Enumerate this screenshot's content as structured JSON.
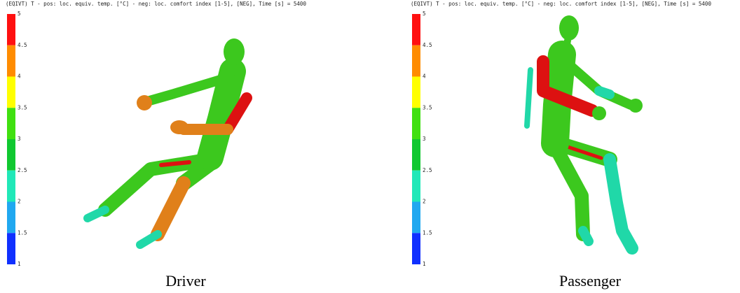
{
  "colorbar_colors": [
    "#ff1010",
    "#ff8c00",
    "#ffff00",
    "#40e010",
    "#10c830",
    "#20e8b8",
    "#20a8f0",
    "#1030ff"
  ],
  "panels": [
    {
      "header": "(EQIVT) T - pos: loc. equiv. temp. [°C] - neg: loc. comfort index [1-5], [NEG], Time [s] = 5400",
      "ticks": [
        5,
        4.5,
        4,
        3.5,
        3,
        2.5,
        2,
        1.5,
        1
      ],
      "caption": "Driver"
    },
    {
      "header": "(EQIVT) T - pos: loc. equiv. temp. [°C] - neg: loc. comfort index [1-5], [NEG], Time [s] = 5400",
      "ticks": [
        5,
        4.5,
        4,
        3.5,
        3,
        2.5,
        2,
        1.5,
        1
      ],
      "caption": "Passenger"
    }
  ]
}
